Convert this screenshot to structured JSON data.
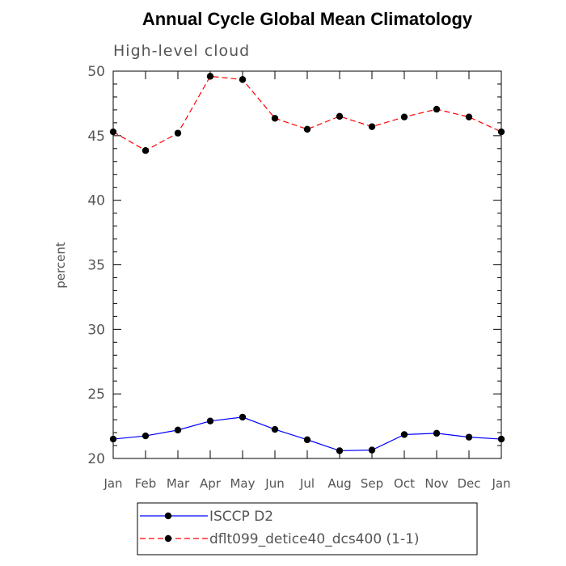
{
  "chart_data": {
    "type": "line",
    "title": "Annual Cycle Global Mean Climatology",
    "subtitle": "High-level cloud",
    "xlabel": "",
    "ylabel": "percent",
    "categories": [
      "Jan",
      "Feb",
      "Mar",
      "Apr",
      "May",
      "Jun",
      "Jul",
      "Aug",
      "Sep",
      "Oct",
      "Nov",
      "Dec",
      "Jan"
    ],
    "ylim": [
      20,
      50
    ],
    "yticks": [
      20,
      25,
      30,
      35,
      40,
      45,
      50
    ],
    "grid": false,
    "legend_position": "bottom",
    "series": [
      {
        "name": "ISCCP D2",
        "color": "#0000ff",
        "dash": "solid",
        "marker": "filled-circle",
        "values": [
          21.5,
          21.75,
          22.2,
          22.9,
          23.2,
          22.25,
          21.45,
          20.6,
          20.65,
          21.85,
          21.95,
          21.65,
          21.5
        ]
      },
      {
        "name": "dflt099_detice40_dcs400 (1-1)",
        "color": "#ff0000",
        "dash": "dashed",
        "marker": "filled-circle",
        "values": [
          45.3,
          43.85,
          45.2,
          49.6,
          49.35,
          46.35,
          45.5,
          46.5,
          45.7,
          46.45,
          47.05,
          46.45,
          45.3
        ]
      }
    ]
  }
}
